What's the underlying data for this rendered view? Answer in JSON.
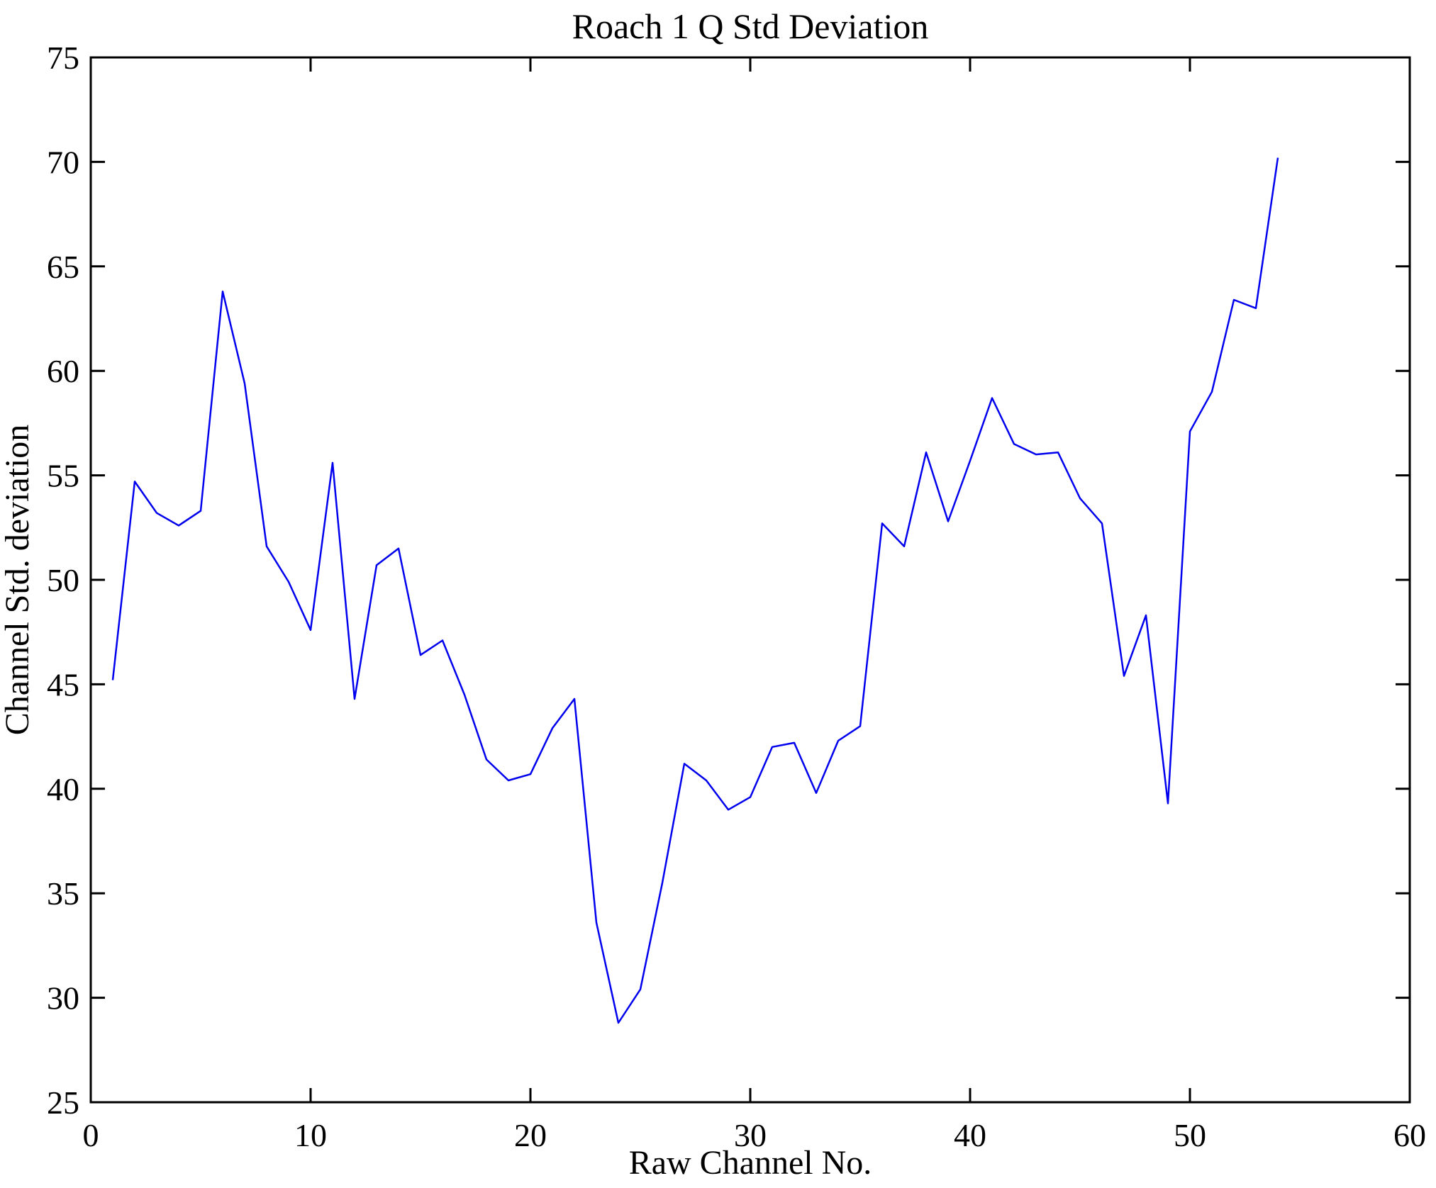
{
  "figure": {
    "background_color": "#ffffff",
    "axis_color": "#000000",
    "line_color": "#0000EE"
  },
  "chart_data": {
    "type": "line",
    "title": "Roach 1 Q Std Deviation",
    "xlabel": "Raw Channel No.",
    "ylabel": "Channel Std. deviation",
    "xlim": [
      0,
      60
    ],
    "ylim": [
      25,
      75
    ],
    "xticks": [
      0,
      10,
      20,
      30,
      40,
      50,
      60
    ],
    "yticks": [
      25,
      30,
      35,
      40,
      45,
      50,
      55,
      60,
      65,
      70,
      75
    ],
    "grid": false,
    "legend": "none",
    "series": [
      {
        "name": "channel-std-deviation",
        "color": "#0000EE",
        "x": [
          1,
          2,
          3,
          4,
          5,
          6,
          7,
          8,
          9,
          10,
          11,
          12,
          13,
          14,
          15,
          16,
          17,
          18,
          19,
          20,
          21,
          22,
          23,
          24,
          25,
          26,
          27,
          28,
          29,
          30,
          31,
          32,
          33,
          34,
          35,
          36,
          37,
          38,
          39,
          40,
          41,
          42,
          43,
          44,
          45,
          46,
          47,
          48,
          49,
          50,
          51,
          52,
          53,
          54
        ],
        "values": [
          45.2,
          54.7,
          53.2,
          52.6,
          53.3,
          63.8,
          59.4,
          51.6,
          49.9,
          47.6,
          55.6,
          44.3,
          50.7,
          51.5,
          46.4,
          47.1,
          44.5,
          41.4,
          40.4,
          40.7,
          42.9,
          44.3,
          33.6,
          28.8,
          30.4,
          35.5,
          41.2,
          40.4,
          39.0,
          39.6,
          42.0,
          42.2,
          39.8,
          42.3,
          43.0,
          52.7,
          51.6,
          56.1,
          52.8,
          55.7,
          58.7,
          56.5,
          56.0,
          56.1,
          53.9,
          52.7,
          45.4,
          48.3,
          39.3,
          57.1,
          59.0,
          63.4,
          63.0,
          70.2
        ]
      }
    ]
  }
}
